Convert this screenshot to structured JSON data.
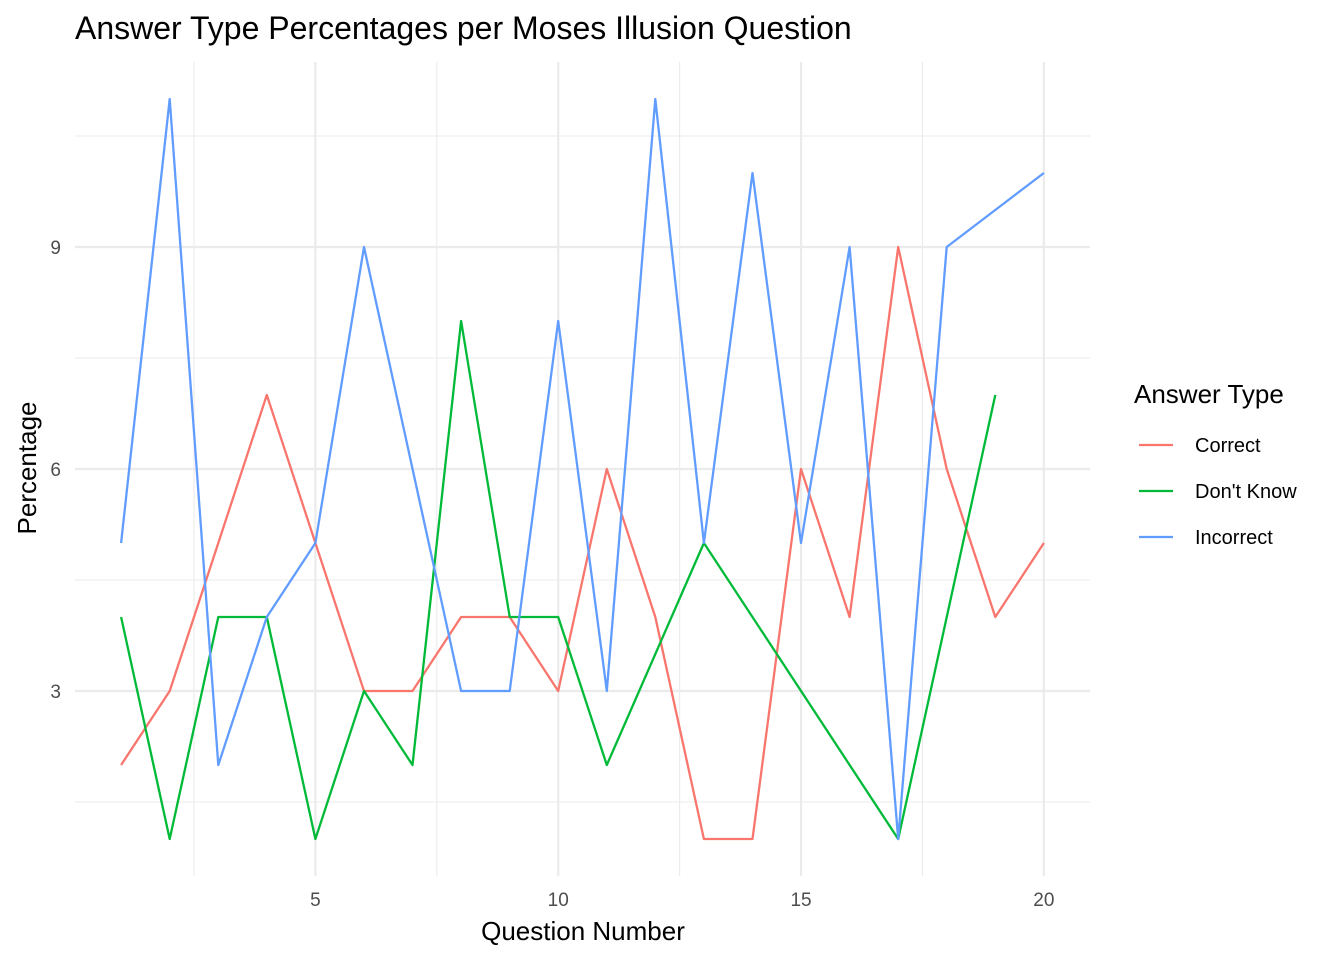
{
  "chart_data": {
    "type": "line",
    "title": "Answer Type Percentages per Moses Illusion Question",
    "xlabel": "Question Number",
    "ylabel": "Percentage",
    "xlim": [
      0.05,
      20.95
    ],
    "ylim": [
      0.5,
      11.5
    ],
    "x_ticks": [
      5,
      10,
      15,
      20
    ],
    "y_ticks": [
      3,
      6,
      9
    ],
    "x_minor": [
      2.5,
      7.5,
      12.5,
      17.5
    ],
    "y_minor": [
      1.5,
      4.5,
      7.5,
      10.5
    ],
    "grid": true,
    "legend_title": "Answer Type",
    "legend_position": "right",
    "series": [
      {
        "name": "Correct",
        "color": "#F8766D",
        "x": [
          1,
          2,
          3,
          4,
          5,
          6,
          7,
          8,
          9,
          10,
          11,
          12,
          13,
          14,
          15,
          16,
          17,
          18,
          19,
          20
        ],
        "values": [
          2,
          3,
          5,
          7,
          5,
          3,
          3,
          4,
          4,
          3,
          6,
          4,
          1,
          1,
          6,
          4,
          9,
          6,
          4,
          5
        ]
      },
      {
        "name": "Don't Know",
        "color": "#00BA38",
        "x": [
          1,
          2,
          3,
          4,
          5,
          6,
          7,
          8,
          9,
          10,
          11,
          13,
          17,
          19
        ],
        "values": [
          4,
          1,
          4,
          4,
          1,
          3,
          2,
          8,
          4,
          4,
          2,
          5,
          1,
          7
        ]
      },
      {
        "name": "Incorrect",
        "color": "#619CFF",
        "x": [
          1,
          2,
          3,
          4,
          5,
          6,
          8,
          9,
          10,
          11,
          12,
          13,
          14,
          15,
          16,
          17,
          18,
          20
        ],
        "values": [
          5,
          11,
          2,
          4,
          5,
          9,
          3,
          3,
          8,
          3,
          11,
          5,
          10,
          5,
          9,
          1,
          9,
          10
        ]
      }
    ]
  }
}
